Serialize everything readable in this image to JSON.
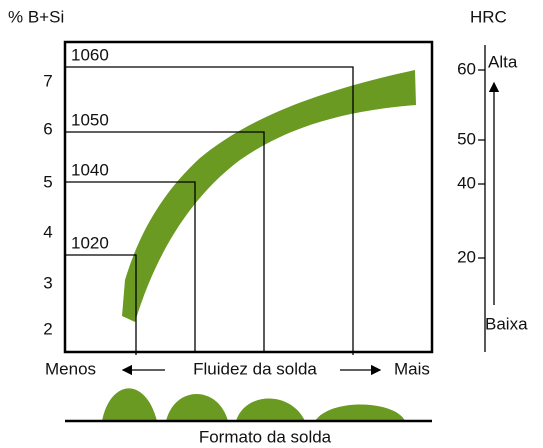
{
  "left_axis": {
    "title": "% B+Si",
    "labels": [
      "7",
      "6",
      "5",
      "4",
      "3",
      "2"
    ]
  },
  "right_axis": {
    "title": "HRC",
    "labels": [
      "60",
      "50",
      "40",
      "20"
    ],
    "top": "Alta",
    "bottom": "Baixa"
  },
  "boxes": [
    "1020",
    "1040",
    "1050",
    "1060"
  ],
  "bottom": {
    "left": "Menos",
    "center": "Fluidez da solda",
    "right": "Mais",
    "caption": "Formato da solda"
  }
}
